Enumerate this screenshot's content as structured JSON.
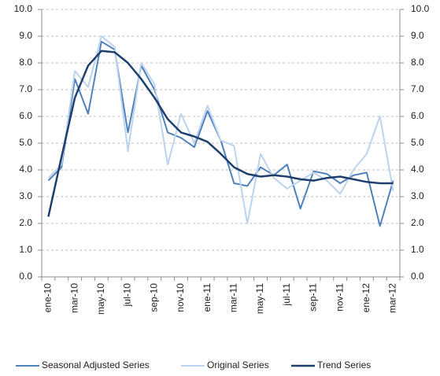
{
  "chart_data": {
    "type": "line",
    "categories": [
      "ene-10",
      null,
      "mar-10",
      null,
      "may-10",
      null,
      "jul-10",
      null,
      "sep-10",
      null,
      "nov-10",
      null,
      "ene-11",
      null,
      "mar-11",
      null,
      "may-11",
      null,
      "jul-11",
      null,
      "sep-11",
      null,
      "nov-11",
      null,
      "ene-12",
      null,
      "mar-12"
    ],
    "series": [
      {
        "name": "Seasonal Adjusted Series",
        "color": "#4f81bd",
        "values": [
          3.6,
          4.1,
          7.4,
          6.1,
          8.8,
          8.5,
          5.4,
          7.9,
          7.0,
          5.4,
          5.2,
          4.85,
          6.2,
          5.1,
          3.5,
          3.4,
          4.1,
          3.8,
          4.2,
          2.55,
          3.95,
          3.85,
          3.5,
          3.8,
          3.9,
          1.9,
          3.6
        ]
      },
      {
        "name": "Original Series",
        "color": "#bcd3ec",
        "values": [
          3.7,
          4.2,
          7.7,
          7.1,
          9.0,
          8.6,
          4.7,
          8.0,
          7.2,
          4.2,
          6.1,
          5.0,
          6.4,
          5.1,
          4.9,
          2.0,
          4.6,
          3.7,
          3.3,
          3.6,
          3.9,
          3.6,
          3.1,
          4.0,
          4.6,
          6.0,
          3.2
        ]
      },
      {
        "name": "Trend Series",
        "color": "#1f3f6e",
        "values": [
          2.25,
          4.5,
          6.7,
          7.9,
          8.45,
          8.4,
          8.0,
          7.4,
          6.7,
          5.9,
          5.4,
          5.25,
          5.05,
          4.6,
          4.1,
          3.85,
          3.75,
          3.8,
          3.75,
          3.65,
          3.6,
          3.7,
          3.75,
          3.65,
          3.55,
          3.5,
          3.5
        ]
      }
    ],
    "ylim": [
      0,
      10
    ],
    "yticks": [
      {
        "value": 0,
        "label": "0.0"
      },
      {
        "value": 1,
        "label": "1.0"
      },
      {
        "value": 2,
        "label": "2.0"
      },
      {
        "value": 3,
        "label": "3.0"
      },
      {
        "value": 4,
        "label": "4.0"
      },
      {
        "value": 5,
        "label": "5.0"
      },
      {
        "value": 6,
        "label": "6.0"
      },
      {
        "value": 7,
        "label": "7.0"
      },
      {
        "value": 8,
        "label": "8.0"
      },
      {
        "value": 9,
        "label": "9.0"
      },
      {
        "value": 10,
        "label": "10.0"
      }
    ],
    "y2lim": [
      0,
      10
    ],
    "y2ticks": [
      {
        "value": 0,
        "label": "0.0"
      },
      {
        "value": 1,
        "label": "1.0"
      },
      {
        "value": 2,
        "label": "2.0"
      },
      {
        "value": 3,
        "label": "3.0"
      },
      {
        "value": 4,
        "label": "4.0"
      },
      {
        "value": 5,
        "label": "5.0"
      },
      {
        "value": 6,
        "label": "6.0"
      },
      {
        "value": 7,
        "label": "7.0"
      },
      {
        "value": 8,
        "label": "8.0"
      },
      {
        "value": 9,
        "label": "9.0"
      },
      {
        "value": 10,
        "label": "10.0"
      }
    ],
    "grid": true,
    "legend": "bottom"
  }
}
